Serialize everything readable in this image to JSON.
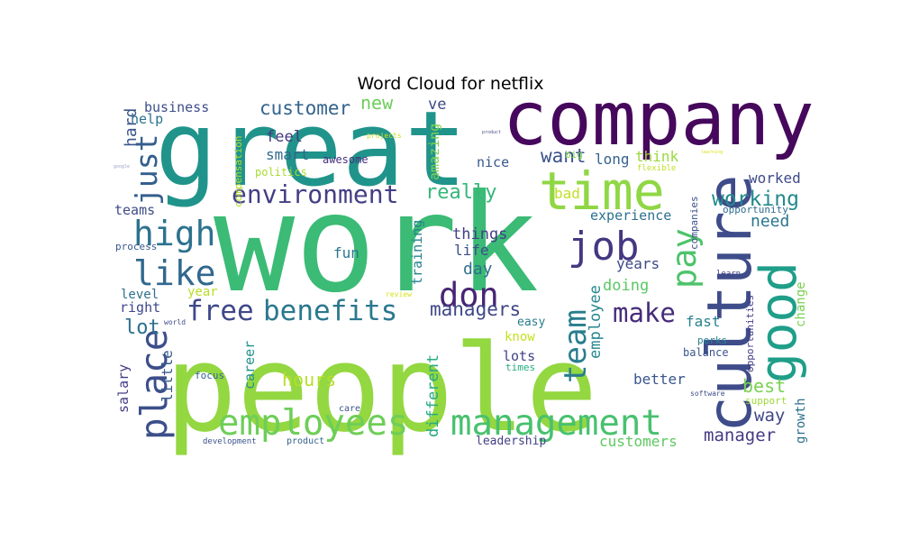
{
  "title": "Word Cloud for netflix",
  "colors": {
    "deep_purple": "#440154",
    "purple": "#46327e",
    "indigo": "#365c8d",
    "blue": "#277f8e",
    "teal": "#1fa187",
    "green": "#4ac16d",
    "lime": "#a0da39",
    "yellow": "#d5e21a"
  },
  "words": [
    {
      "text": "work",
      "color": "#3bbb75"
    },
    {
      "text": "people",
      "color": "#93d741"
    },
    {
      "text": "great",
      "color": "#20948b"
    },
    {
      "text": "company",
      "color": "#46085c"
    },
    {
      "text": "culture",
      "color": "#3e4c8a"
    },
    {
      "text": "time",
      "color": "#8fd744"
    },
    {
      "text": "good",
      "color": "#1f9e89"
    },
    {
      "text": "management",
      "color": "#48c16e"
    },
    {
      "text": "employees",
      "color": "#6ece58"
    },
    {
      "text": "environment",
      "color": "#433e85"
    },
    {
      "text": "benefits",
      "color": "#2a788e"
    },
    {
      "text": "free",
      "color": "#3f4889"
    },
    {
      "text": "job",
      "color": "#453781"
    },
    {
      "text": "place",
      "color": "#3c4f8a"
    },
    {
      "text": "high",
      "color": "#2c728e"
    },
    {
      "text": "like",
      "color": "#31688e"
    },
    {
      "text": "don",
      "color": "#482475"
    },
    {
      "text": "pay",
      "color": "#4ec36b"
    },
    {
      "text": "team",
      "color": "#287d8e"
    },
    {
      "text": "just",
      "color": "#355f8d"
    },
    {
      "text": "make",
      "color": "#472c7a"
    },
    {
      "text": "working",
      "color": "#238a8d"
    },
    {
      "text": "really",
      "color": "#35b779"
    },
    {
      "text": "customer",
      "color": "#33638d"
    },
    {
      "text": "managers",
      "color": "#3f4788"
    },
    {
      "text": "hours",
      "color": "#b5de2b"
    },
    {
      "text": "new",
      "color": "#6ccd5a"
    },
    {
      "text": "want",
      "color": "#3b528b"
    },
    {
      "text": "customers",
      "color": "#5ec962"
    },
    {
      "text": "best",
      "color": "#7ad151"
    },
    {
      "text": "manager",
      "color": "#443983"
    },
    {
      "text": "lot",
      "color": "#2d708e"
    },
    {
      "text": "employee",
      "color": "#25858e"
    },
    {
      "text": "experience",
      "color": "#2c718e"
    },
    {
      "text": "worked",
      "color": "#3e4a89"
    },
    {
      "text": "need",
      "color": "#2a768e"
    },
    {
      "text": "way",
      "color": "#404688"
    },
    {
      "text": "day",
      "color": "#2e6f8e"
    },
    {
      "text": "training",
      "color": "#26828e"
    },
    {
      "text": "different",
      "color": "#24aa83"
    },
    {
      "text": "amazing",
      "color": "#7fd34e"
    },
    {
      "text": "smart",
      "color": "#31678e"
    },
    {
      "text": "feel",
      "color": "#453882"
    },
    {
      "text": "hard",
      "color": "#3a548c"
    },
    {
      "text": "nice",
      "color": "#38588c"
    },
    {
      "text": "things",
      "color": "#424086"
    },
    {
      "text": "life",
      "color": "#3d4d8a"
    },
    {
      "text": "fun",
      "color": "#2a778e"
    },
    {
      "text": "doing",
      "color": "#5ac864"
    },
    {
      "text": "years",
      "color": "#3e4989"
    },
    {
      "text": "think",
      "color": "#9bd93c"
    },
    {
      "text": "long",
      "color": "#33638d"
    },
    {
      "text": "bad",
      "color": "#c2df23"
    },
    {
      "text": "business",
      "color": "#3d4e8a"
    },
    {
      "text": "help",
      "color": "#2d718e"
    },
    {
      "text": "ve",
      "color": "#3e4a89"
    },
    {
      "text": "fast",
      "color": "#26828e"
    },
    {
      "text": "better",
      "color": "#39568c"
    },
    {
      "text": "career",
      "color": "#21918c"
    },
    {
      "text": "little",
      "color": "#375a8c"
    },
    {
      "text": "salary",
      "color": "#433d84"
    },
    {
      "text": "teams",
      "color": "#3d4d8a"
    },
    {
      "text": "level",
      "color": "#2e6e8e"
    },
    {
      "text": "right",
      "color": "#3f4889"
    },
    {
      "text": "year",
      "color": "#b8de29"
    },
    {
      "text": "know",
      "color": "#c5e021"
    },
    {
      "text": "lots",
      "color": "#424186"
    },
    {
      "text": "growth",
      "color": "#2d708e"
    },
    {
      "text": "change",
      "color": "#7ad151"
    },
    {
      "text": "process",
      "color": "#38598c"
    },
    {
      "text": "companies",
      "color": "#3c4f8a"
    },
    {
      "text": "opportunity",
      "color": "#2f6b8e"
    },
    {
      "text": "opportunities",
      "color": "#433e85"
    },
    {
      "text": "balance",
      "color": "#3a548c"
    },
    {
      "text": "perks",
      "color": "#25848e"
    },
    {
      "text": "support",
      "color": "#9dd93b"
    },
    {
      "text": "easy",
      "color": "#287c8e"
    },
    {
      "text": "leadership",
      "color": "#423f85"
    },
    {
      "text": "politics",
      "color": "#a8db34"
    },
    {
      "text": "compensation",
      "color": "#b2dd2d"
    },
    {
      "text": "projects",
      "color": "#c8e020"
    },
    {
      "text": "awesome",
      "color": "#46317e"
    },
    {
      "text": "big",
      "color": "#7fd34e"
    },
    {
      "text": "flexible",
      "color": "#c0df25"
    },
    {
      "text": "focus",
      "color": "#33638d"
    },
    {
      "text": "world",
      "color": "#3e4a89"
    },
    {
      "text": "review",
      "color": "#d8e219"
    },
    {
      "text": "care",
      "color": "#3a538b"
    },
    {
      "text": "development",
      "color": "#3b528b"
    },
    {
      "text": "product",
      "color": "#33628d"
    },
    {
      "text": "software",
      "color": "#3e4c8a"
    },
    {
      "text": "learn",
      "color": "#414487"
    },
    {
      "text": "times",
      "color": "#25ac82"
    },
    {
      "text": "product",
      "color": "#4e4e8a"
    },
    {
      "text": "google",
      "color": "#9fa3c4"
    },
    {
      "text": "learning",
      "color": "#d7e219"
    }
  ]
}
